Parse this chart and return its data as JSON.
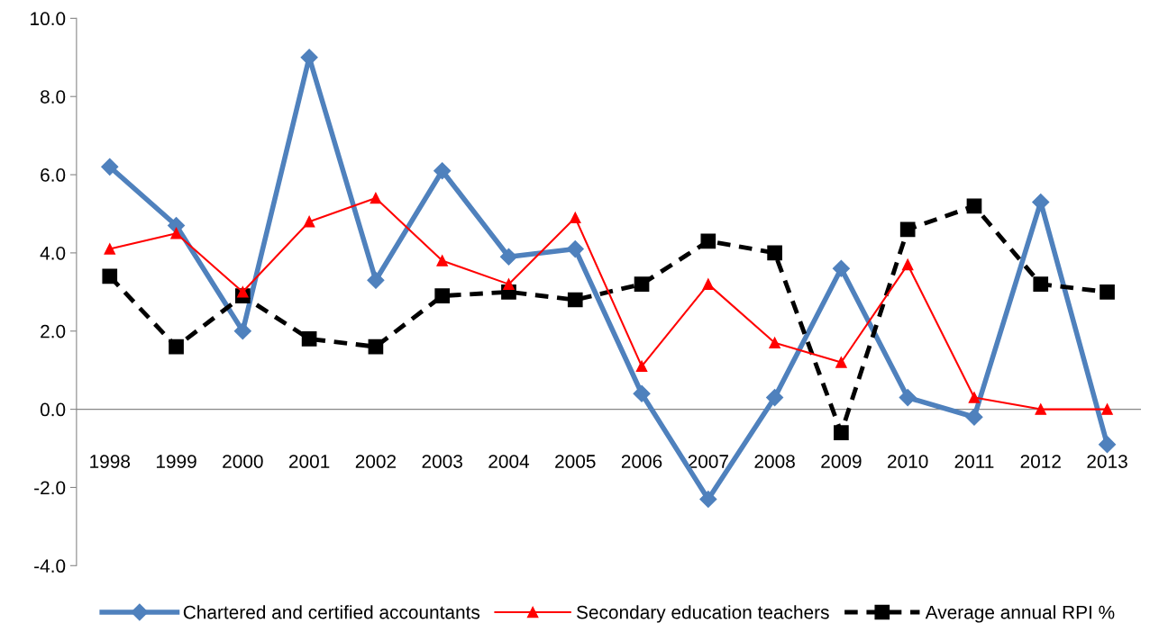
{
  "chart_data": {
    "type": "line",
    "categories": [
      "1998",
      "1999",
      "2000",
      "2001",
      "2002",
      "2003",
      "2004",
      "2005",
      "2006",
      "2007",
      "2008",
      "2009",
      "2010",
      "2011",
      "2012",
      "2013"
    ],
    "series": [
      {
        "name": "Chartered and certified accountants",
        "color": "#4f81bd",
        "marker": "diamond",
        "line_style": "solid",
        "values": [
          6.2,
          4.7,
          2.0,
          9.0,
          3.3,
          6.1,
          3.9,
          4.1,
          0.4,
          -2.3,
          0.3,
          3.6,
          0.3,
          -0.2,
          5.3,
          -0.9
        ]
      },
      {
        "name": "Secondary education teachers",
        "color": "#ff0000",
        "marker": "triangle",
        "line_style": "solid",
        "values": [
          4.1,
          4.5,
          3.0,
          4.8,
          5.4,
          3.8,
          3.2,
          4.9,
          1.1,
          3.2,
          1.7,
          1.2,
          3.7,
          0.3,
          0.0,
          0.0
        ]
      },
      {
        "name": "Average annual RPI %",
        "color": "#000000",
        "marker": "square",
        "line_style": "dashed",
        "values": [
          3.4,
          1.6,
          2.9,
          1.8,
          1.6,
          2.9,
          3.0,
          2.8,
          3.2,
          4.3,
          4.0,
          -0.6,
          4.6,
          5.2,
          3.2,
          3.0
        ]
      }
    ],
    "ylim": [
      -4,
      10
    ],
    "yticks": [
      {
        "value": -4,
        "label": "-4.0"
      },
      {
        "value": -2,
        "label": "-2.0"
      },
      {
        "value": 0,
        "label": "0.0"
      },
      {
        "value": 2,
        "label": "2.0"
      },
      {
        "value": 4,
        "label": "4.0"
      },
      {
        "value": 6,
        "label": "6.0"
      },
      {
        "value": 8,
        "label": "8.0"
      },
      {
        "value": 10,
        "label": "10.0"
      }
    ],
    "grid": false,
    "legend": "bottom"
  }
}
